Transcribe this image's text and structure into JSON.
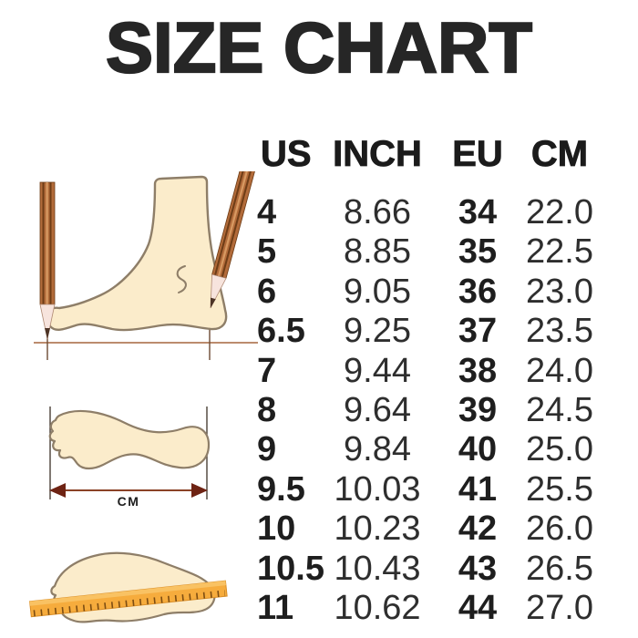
{
  "title": "SIZE CHART",
  "chart_data": {
    "type": "table",
    "title": "SIZE CHART",
    "columns": [
      "US",
      "INCH",
      "EU",
      "CM"
    ],
    "rows": [
      [
        "4",
        "8.66",
        "34",
        "22.0"
      ],
      [
        "5",
        "8.85",
        "35",
        "22.5"
      ],
      [
        "6",
        "9.05",
        "36",
        "23.0"
      ],
      [
        "6.5",
        "9.25",
        "37",
        "23.5"
      ],
      [
        "7",
        "9.44",
        "38",
        "24.0"
      ],
      [
        "8",
        "9.64",
        "39",
        "24.5"
      ],
      [
        "9",
        "9.84",
        "40",
        "25.0"
      ],
      [
        "9.5",
        "10.03",
        "41",
        "25.5"
      ],
      [
        "10",
        "10.23",
        "42",
        "26.0"
      ],
      [
        "10.5",
        "10.43",
        "43",
        "26.5"
      ],
      [
        "11",
        "10.62",
        "44",
        "27.0"
      ]
    ]
  },
  "illustrations": {
    "cm_label": "CM",
    "items": [
      {
        "name": "foot-side-with-pencils"
      },
      {
        "name": "foot-outline-length-arrow"
      },
      {
        "name": "foot-outline-with-ruler"
      }
    ]
  },
  "colors": {
    "background": "#ffffff",
    "title_text": "#262626",
    "bold_column_text": "#1e1e1e",
    "regular_column_text": "#2e2e2e",
    "foot_fill": "#fbeccb",
    "foot_outline": "#8e7e68",
    "pencil_body": "#b26b3a",
    "pencil_stripe": "#6e3d17",
    "baseline": "#a5673f",
    "arrow_head": "#6e2313",
    "ruler_fill": "#f6ac3d",
    "ruler_tick": "#7d4d12"
  }
}
